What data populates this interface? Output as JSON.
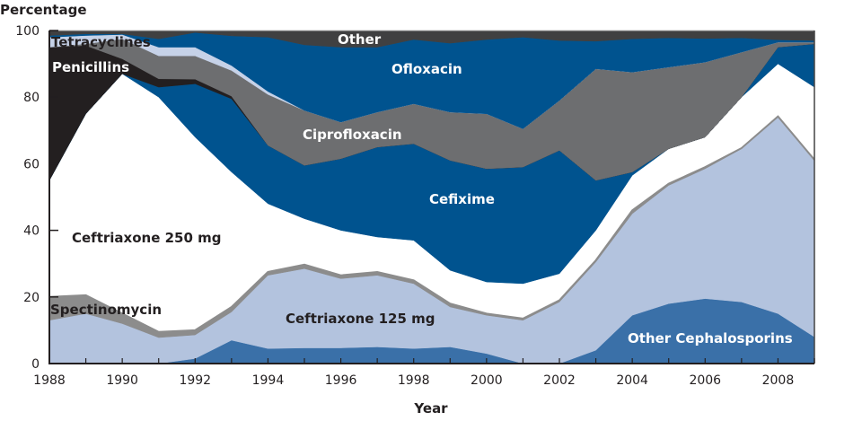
{
  "chart_data": {
    "type": "area",
    "stacked": true,
    "ylabel": "Percentage",
    "xlabel": "Year",
    "ylim": [
      0,
      100
    ],
    "xlim": [
      1988,
      2009
    ],
    "yticks": [
      0,
      20,
      40,
      60,
      80,
      100
    ],
    "xticks": [
      1988,
      1990,
      1992,
      1994,
      1996,
      1998,
      2000,
      2002,
      2004,
      2006,
      2008
    ],
    "grid": false,
    "legend": "inline labels",
    "x": [
      1988,
      1989,
      1990,
      1991,
      1992,
      1993,
      1994,
      1995,
      1996,
      1997,
      1998,
      1999,
      2000,
      2001,
      2002,
      2003,
      2004,
      2005,
      2006,
      2007,
      2008,
      2009
    ],
    "series": [
      {
        "name": "Other Cephalosporins",
        "color": "#3a70a8",
        "label_color": "#ffffff",
        "values": [
          0,
          0,
          0,
          0,
          1.5,
          7,
          4.5,
          4.7,
          4.7,
          5,
          4.5,
          5,
          3,
          0,
          0,
          4,
          14.5,
          18,
          19.5,
          18.5,
          15,
          8
        ]
      },
      {
        "name": "Ceftriaxone 125 mg",
        "color": "#b3c3de",
        "label_color": "#231f20",
        "values": [
          13,
          15,
          12,
          7.8,
          7.1,
          8.5,
          22,
          23.8,
          20.8,
          21.5,
          19.5,
          12,
          11.5,
          13,
          18.5,
          26.5,
          30.5,
          35.5,
          39,
          46,
          59,
          53
        ]
      },
      {
        "name": "Spectinomycin",
        "color": "#8c8c8c",
        "label_color": "#231f20",
        "values": [
          7,
          5.5,
          3,
          1.7,
          1.4,
          1.5,
          1,
          1.2,
          1,
          1,
          1,
          1,
          0.5,
          0.5,
          0.5,
          0.5,
          1,
          0.5,
          0.5,
          0.2,
          0.2,
          0.2
        ]
      },
      {
        "name": "Ceftriaxone 250 mg",
        "color": "#ffffff",
        "label_color": "#231f20",
        "values": [
          35,
          54.5,
          72,
          70.5,
          58,
          40.5,
          20.5,
          13.8,
          13.5,
          10.5,
          12,
          10,
          9.5,
          10.5,
          8,
          9,
          10.5,
          10.5,
          9,
          15.3,
          15.8,
          21.8
        ]
      },
      {
        "name": "Cefixime",
        "color": "#00538f",
        "label_color": "#ffffff",
        "values": [
          0,
          0,
          0,
          3,
          16,
          22,
          17.5,
          16,
          21.5,
          27,
          29,
          33,
          34,
          35,
          37,
          15,
          1,
          0,
          0,
          0,
          5,
          13
        ]
      },
      {
        "name": "Penicillins",
        "color": "#231f20",
        "label_color": "#ffffff",
        "values": [
          40,
          20.5,
          4.5,
          2.5,
          1.4,
          0.8,
          0,
          0,
          0,
          0,
          0,
          0,
          0,
          0,
          0,
          0,
          0,
          0,
          0,
          0,
          0,
          0
        ]
      },
      {
        "name": "Ciprofloxacin",
        "color": "#6d6e70",
        "label_color": "#ffffff",
        "values": [
          0,
          0.5,
          6,
          6.9,
          7,
          7.7,
          15.3,
          16.5,
          11,
          10.5,
          12,
          14.5,
          16.5,
          11.5,
          15,
          33.5,
          30,
          24.5,
          22.5,
          13.5,
          1.5,
          0.5
        ]
      },
      {
        "name": "Tetracyclines",
        "color": "#c6d2e8",
        "label_color": "#231f20",
        "values": [
          3,
          2.5,
          1.3,
          2.6,
          2.6,
          1.5,
          0.9,
          0,
          0,
          0,
          0,
          0,
          0,
          0,
          0,
          0,
          0,
          0,
          0,
          0,
          0,
          0
        ]
      },
      {
        "name": "Ofloxacin",
        "color": "#00538f",
        "label_color": "#ffffff",
        "values": [
          0.5,
          0.5,
          0.2,
          2.5,
          4.4,
          8.9,
          16.3,
          19.7,
          22.5,
          19.5,
          19.3,
          20.7,
          22.3,
          27.5,
          18,
          8.3,
          10,
          8.8,
          7.1,
          4.3,
          0.7,
          0.5
        ]
      },
      {
        "name": "Other",
        "color": "#404041",
        "label_color": "#ffffff",
        "values": [
          1.5,
          1,
          1,
          2.5,
          0.6,
          1.6,
          2,
          4.3,
          5,
          5,
          2.7,
          3.8,
          2.7,
          2,
          3,
          3.2,
          2.5,
          2.2,
          2.4,
          2.2,
          2.8,
          3
        ]
      }
    ]
  }
}
